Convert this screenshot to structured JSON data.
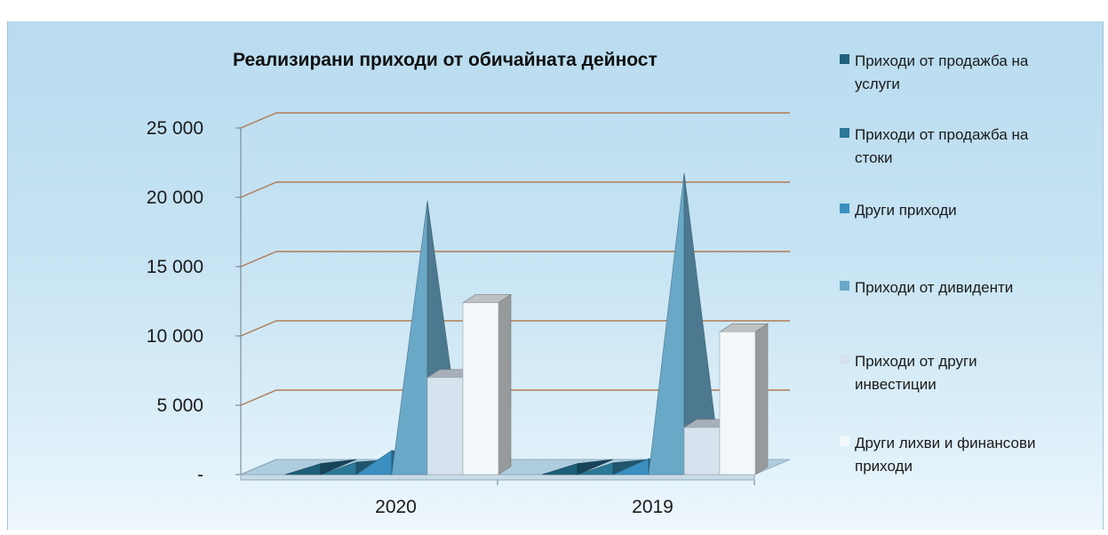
{
  "chart_data": {
    "type": "bar",
    "title": "Реализирани приходи от обичайната дейност",
    "categories": [
      "2020",
      "2019"
    ],
    "y_ticks": [
      "-",
      "5 000",
      "10 000",
      "15 000",
      "20 000",
      "25 000"
    ],
    "ylim": [
      0,
      25000
    ],
    "grid": true,
    "legend_position": "right",
    "series": [
      {
        "name": "Приходи от продажба на услуги",
        "shape": "pyramid",
        "color": "#1f5f7a",
        "values": [
          250,
          250
        ]
      },
      {
        "name": "Приходи от продажба на стоки",
        "shape": "pyramid",
        "color": "#2c7898",
        "values": [
          350,
          300
        ]
      },
      {
        "name": "Други приходи",
        "shape": "pyramid",
        "color": "#3a8fc0",
        "values": [
          1200,
          600
        ]
      },
      {
        "name": "Приходи от дивиденти",
        "shape": "pyramid",
        "color": "#6aa8c8",
        "values": [
          19200,
          21200
        ]
      },
      {
        "name": "Приходи от други инвестиции",
        "shape": "box",
        "color": "#d6e2ee",
        "values": [
          7000,
          3400
        ]
      },
      {
        "name": "Други лихви и финансови приходи",
        "shape": "box",
        "color": "#f4f8fb",
        "values": [
          12400,
          10300
        ]
      }
    ]
  }
}
